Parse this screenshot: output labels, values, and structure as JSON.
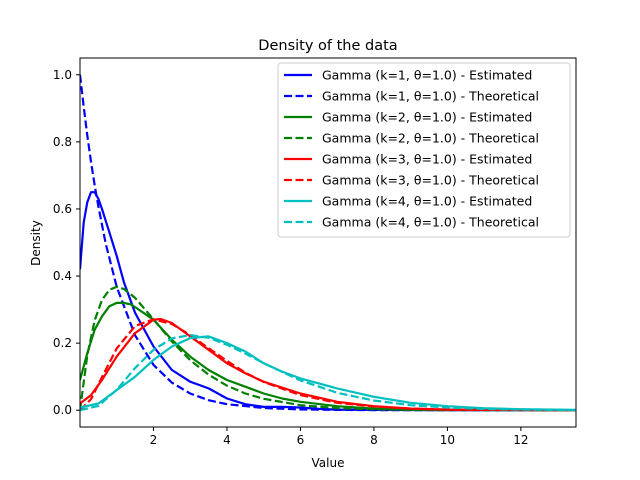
{
  "chart_data": {
    "type": "line",
    "title": "Density of the data",
    "xlabel": "Value",
    "ylabel": "Density",
    "xlim": [
      0.0,
      13.5
    ],
    "ylim": [
      -0.05,
      1.05
    ],
    "xticks": [
      2,
      4,
      6,
      8,
      10,
      12
    ],
    "yticks": [
      0.0,
      0.2,
      0.4,
      0.6,
      0.8,
      1.0
    ],
    "grid": false,
    "legend_position": "top-right",
    "series": [
      {
        "name": "Gamma (k=1, θ=1.0) - Estimated",
        "color": "#0000ff",
        "style": "solid",
        "points": [
          [
            0.0,
            0.42
          ],
          [
            0.1,
            0.56
          ],
          [
            0.2,
            0.62
          ],
          [
            0.3,
            0.65
          ],
          [
            0.4,
            0.65
          ],
          [
            0.5,
            0.63
          ],
          [
            0.6,
            0.6
          ],
          [
            0.8,
            0.53
          ],
          [
            1.0,
            0.46
          ],
          [
            1.2,
            0.38
          ],
          [
            1.5,
            0.29
          ],
          [
            2.0,
            0.19
          ],
          [
            2.5,
            0.12
          ],
          [
            3.0,
            0.085
          ],
          [
            3.5,
            0.065
          ],
          [
            4.0,
            0.035
          ],
          [
            4.5,
            0.018
          ],
          [
            5.0,
            0.01
          ],
          [
            5.5,
            0.01
          ],
          [
            6.0,
            0.008
          ],
          [
            6.5,
            0.004
          ],
          [
            7.0,
            0.002
          ],
          [
            8.0,
            0.001
          ],
          [
            10.0,
            0.0
          ],
          [
            13.5,
            0.0
          ]
        ]
      },
      {
        "name": "Gamma (k=1, θ=1.0) - Theoretical",
        "color": "#0000ff",
        "style": "dashed",
        "points": [
          [
            0.0,
            1.0
          ],
          [
            0.1,
            0.905
          ],
          [
            0.2,
            0.819
          ],
          [
            0.3,
            0.741
          ],
          [
            0.4,
            0.67
          ],
          [
            0.5,
            0.607
          ],
          [
            0.7,
            0.497
          ],
          [
            1.0,
            0.368
          ],
          [
            1.5,
            0.223
          ],
          [
            2.0,
            0.135
          ],
          [
            2.5,
            0.082
          ],
          [
            3.0,
            0.05
          ],
          [
            3.5,
            0.03
          ],
          [
            4.0,
            0.018
          ],
          [
            5.0,
            0.0067
          ],
          [
            6.0,
            0.0025
          ],
          [
            7.0,
            0.0009
          ],
          [
            8.0,
            0.0003
          ],
          [
            10.0,
            0.0
          ],
          [
            13.5,
            0.0
          ]
        ]
      },
      {
        "name": "Gamma (k=2, θ=1.0) - Estimated",
        "color": "#008000",
        "style": "solid",
        "points": [
          [
            0.0,
            0.09
          ],
          [
            0.2,
            0.17
          ],
          [
            0.4,
            0.24
          ],
          [
            0.6,
            0.28
          ],
          [
            0.8,
            0.31
          ],
          [
            1.0,
            0.32
          ],
          [
            1.2,
            0.32
          ],
          [
            1.4,
            0.315
          ],
          [
            1.6,
            0.3
          ],
          [
            2.0,
            0.27
          ],
          [
            2.5,
            0.21
          ],
          [
            3.0,
            0.16
          ],
          [
            3.5,
            0.12
          ],
          [
            4.0,
            0.09
          ],
          [
            4.5,
            0.07
          ],
          [
            5.0,
            0.05
          ],
          [
            5.5,
            0.035
          ],
          [
            6.0,
            0.025
          ],
          [
            7.0,
            0.012
          ],
          [
            8.0,
            0.005
          ],
          [
            9.0,
            0.002
          ],
          [
            10.0,
            0.001
          ],
          [
            13.5,
            0.0
          ]
        ]
      },
      {
        "name": "Gamma (k=2, θ=1.0) - Theoretical",
        "color": "#008000",
        "style": "dashed",
        "points": [
          [
            0.0,
            0.0
          ],
          [
            0.2,
            0.164
          ],
          [
            0.4,
            0.268
          ],
          [
            0.6,
            0.329
          ],
          [
            0.8,
            0.359
          ],
          [
            1.0,
            0.368
          ],
          [
            1.2,
            0.361
          ],
          [
            1.5,
            0.335
          ],
          [
            2.0,
            0.271
          ],
          [
            2.5,
            0.205
          ],
          [
            3.0,
            0.149
          ],
          [
            3.5,
            0.106
          ],
          [
            4.0,
            0.073
          ],
          [
            4.5,
            0.05
          ],
          [
            5.0,
            0.034
          ],
          [
            6.0,
            0.015
          ],
          [
            7.0,
            0.0064
          ],
          [
            8.0,
            0.0027
          ],
          [
            9.0,
            0.0011
          ],
          [
            10.0,
            0.0
          ],
          [
            13.5,
            0.0
          ]
        ]
      },
      {
        "name": "Gamma (k=3, θ=1.0) - Estimated",
        "color": "#ff0000",
        "style": "solid",
        "points": [
          [
            0.0,
            0.02
          ],
          [
            0.3,
            0.045
          ],
          [
            0.6,
            0.09
          ],
          [
            1.0,
            0.16
          ],
          [
            1.5,
            0.23
          ],
          [
            2.0,
            0.27
          ],
          [
            2.2,
            0.272
          ],
          [
            2.5,
            0.26
          ],
          [
            3.0,
            0.22
          ],
          [
            3.5,
            0.18
          ],
          [
            4.0,
            0.14
          ],
          [
            4.5,
            0.11
          ],
          [
            5.0,
            0.085
          ],
          [
            6.0,
            0.05
          ],
          [
            7.0,
            0.025
          ],
          [
            8.0,
            0.012
          ],
          [
            9.0,
            0.005
          ],
          [
            10.0,
            0.002
          ],
          [
            13.5,
            0.0
          ]
        ]
      },
      {
        "name": "Gamma (k=3, θ=1.0) - Theoretical",
        "color": "#ff0000",
        "style": "dashed",
        "points": [
          [
            0.0,
            0.0
          ],
          [
            0.3,
            0.033
          ],
          [
            0.6,
            0.099
          ],
          [
            1.0,
            0.184
          ],
          [
            1.5,
            0.251
          ],
          [
            2.0,
            0.271
          ],
          [
            2.5,
            0.257
          ],
          [
            3.0,
            0.224
          ],
          [
            3.5,
            0.185
          ],
          [
            4.0,
            0.147
          ],
          [
            4.5,
            0.112
          ],
          [
            5.0,
            0.084
          ],
          [
            6.0,
            0.045
          ],
          [
            7.0,
            0.022
          ],
          [
            8.0,
            0.011
          ],
          [
            9.0,
            0.005
          ],
          [
            10.0,
            0.002
          ],
          [
            13.5,
            0.0
          ]
        ]
      },
      {
        "name": "Gamma (k=4, θ=1.0) - Estimated",
        "color": "#00bfbf",
        "style": "solid",
        "points": [
          [
            0.0,
            0.008
          ],
          [
            0.5,
            0.02
          ],
          [
            1.0,
            0.06
          ],
          [
            1.5,
            0.1
          ],
          [
            2.0,
            0.15
          ],
          [
            2.5,
            0.19
          ],
          [
            3.0,
            0.215
          ],
          [
            3.5,
            0.22
          ],
          [
            4.0,
            0.2
          ],
          [
            4.5,
            0.175
          ],
          [
            5.0,
            0.14
          ],
          [
            5.5,
            0.115
          ],
          [
            6.0,
            0.095
          ],
          [
            7.0,
            0.065
          ],
          [
            8.0,
            0.04
          ],
          [
            9.0,
            0.022
          ],
          [
            10.0,
            0.012
          ],
          [
            11.0,
            0.006
          ],
          [
            12.0,
            0.003
          ],
          [
            13.5,
            0.001
          ]
        ]
      },
      {
        "name": "Gamma (k=4, θ=1.0) - Theoretical",
        "color": "#00bfbf",
        "style": "dashed",
        "points": [
          [
            0.0,
            0.0
          ],
          [
            0.5,
            0.013
          ],
          [
            1.0,
            0.061
          ],
          [
            1.5,
            0.126
          ],
          [
            2.0,
            0.18
          ],
          [
            2.5,
            0.214
          ],
          [
            3.0,
            0.224
          ],
          [
            3.5,
            0.216
          ],
          [
            4.0,
            0.195
          ],
          [
            4.5,
            0.169
          ],
          [
            5.0,
            0.14
          ],
          [
            6.0,
            0.089
          ],
          [
            7.0,
            0.052
          ],
          [
            8.0,
            0.029
          ],
          [
            9.0,
            0.015
          ],
          [
            10.0,
            0.008
          ],
          [
            11.0,
            0.004
          ],
          [
            12.0,
            0.002
          ],
          [
            13.5,
            0.0
          ]
        ]
      }
    ]
  }
}
